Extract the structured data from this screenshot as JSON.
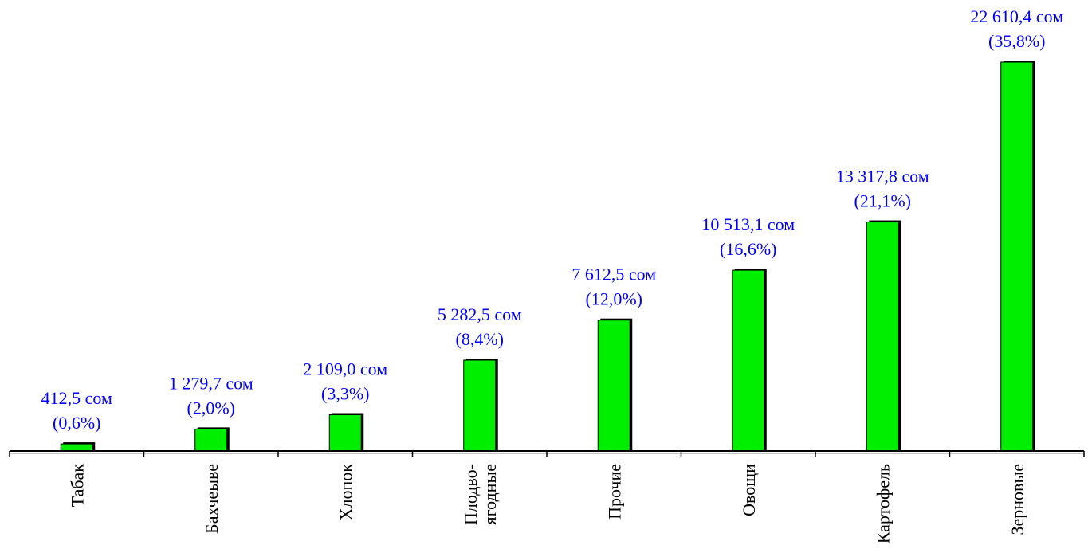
{
  "chart_data": {
    "type": "bar",
    "categories": [
      [
        "Табак"
      ],
      [
        "Бахчеыве"
      ],
      [
        "Хлопок"
      ],
      [
        "Плодво-",
        "ягодные"
      ],
      [
        "Прочие"
      ],
      [
        "Овощи"
      ],
      [
        "Картофель"
      ],
      [
        "Зерновые"
      ]
    ],
    "values": [
      412.5,
      1279.7,
      2109.0,
      5282.5,
      7612.5,
      10513.1,
      13317.8,
      22610.4
    ],
    "value_labels": [
      "412,5 сом",
      "1 279,7 сом",
      "2 109,0 сом",
      "5 282,5 сом",
      "7 612,5 сом",
      "10 513,1 сом",
      "13 317,8 сом",
      "22 610,4 сом"
    ],
    "percent_labels": [
      "(0,6%)",
      "(2,0%)",
      "(3,3%)",
      "(8,4%)",
      "(12,0%)",
      "(16,6%)",
      "(21,1%)",
      "(35,8%)"
    ],
    "title": "",
    "xlabel": "",
    "ylabel": "",
    "ylim": [
      0,
      22610.4
    ],
    "grid": false,
    "legend": "none",
    "colors": {
      "bar_fill": "#00ee00",
      "bar_shadow": "#000000",
      "axis": "#000000",
      "value_label": "#0000ff",
      "category_label": "#000000"
    }
  }
}
